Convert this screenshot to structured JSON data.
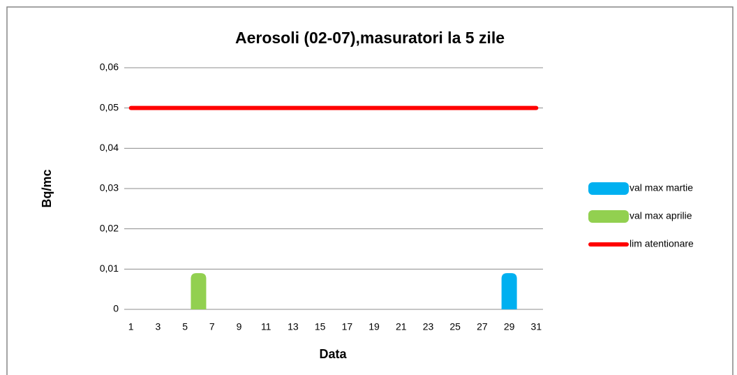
{
  "chart_data": {
    "type": "bar",
    "title": "Aerosoli (02-07),masuratori la 5 zile",
    "y_label": "Bq/mc",
    "x_label": "Data",
    "categories": [
      "1",
      null,
      "3",
      null,
      "5",
      null,
      "7",
      null,
      "9",
      null,
      "11",
      null,
      "13",
      null,
      "15",
      null,
      "17",
      null,
      "19",
      null,
      "21",
      null,
      "23",
      null,
      "25",
      null,
      "27",
      null,
      "29",
      null,
      "31"
    ],
    "series": [
      {
        "name": "val max martie",
        "type": "bar",
        "color": "#00b0f0",
        "values": [
          null,
          null,
          null,
          null,
          null,
          null,
          null,
          null,
          null,
          null,
          null,
          null,
          null,
          null,
          null,
          null,
          null,
          null,
          null,
          null,
          null,
          null,
          null,
          null,
          null,
          null,
          null,
          null,
          0.009,
          null,
          null
        ]
      },
      {
        "name": "val max aprilie",
        "type": "bar",
        "color": "#92d050",
        "values": [
          null,
          null,
          null,
          null,
          null,
          0.009,
          null,
          null,
          null,
          null,
          null,
          null,
          null,
          null,
          null,
          null,
          null,
          null,
          null,
          null,
          null,
          null,
          null,
          null,
          null,
          null,
          null,
          null,
          null,
          null,
          null
        ]
      },
      {
        "name": "lim atentionare",
        "type": "line",
        "color": "#ff0000",
        "values": [
          0.05,
          0.05,
          0.05,
          0.05,
          0.05,
          0.05,
          0.05,
          0.05,
          0.05,
          0.05,
          0.05,
          0.05,
          0.05,
          0.05,
          0.05,
          0.05,
          0.05,
          0.05,
          0.05,
          0.05,
          0.05,
          0.05,
          0.05,
          0.05,
          0.05,
          0.05,
          0.05,
          0.05,
          0.05,
          0.05,
          0.05
        ]
      }
    ],
    "ylim": [
      0,
      0.06
    ],
    "yticks": [
      0,
      {
        "value": 0.01,
        "label": "0,01"
      },
      {
        "value": 0.02,
        "label": "0,02"
      },
      {
        "value": 0.03,
        "label": "0,03"
      },
      {
        "value": 0.04,
        "label": "0,04"
      },
      {
        "value": 0.05,
        "label": "0,05"
      },
      {
        "value": 0.06,
        "label": "0,06"
      }
    ],
    "grid": true,
    "legend": "right"
  }
}
